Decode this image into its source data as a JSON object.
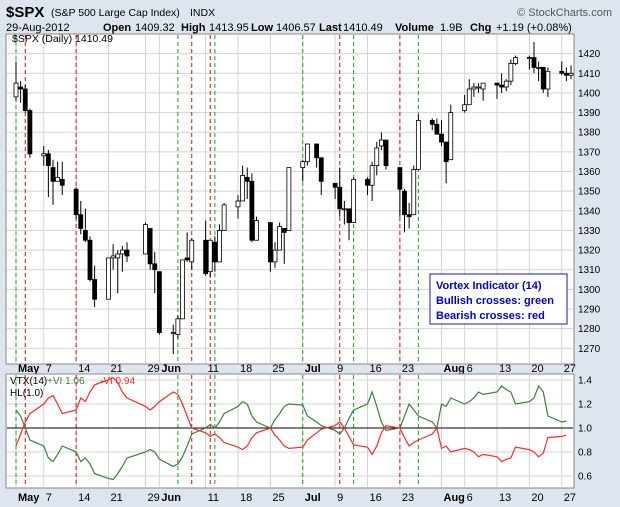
{
  "header": {
    "symbol": "$SPX",
    "name": "(S&P 500 Large Cap Index)",
    "exchange": "INDX",
    "brand": "© StockCharts.com",
    "date": "29-Aug-2012",
    "open_label": "Open",
    "open": "1409.32",
    "high_label": "High",
    "high": "1413.95",
    "low_label": "Low",
    "low": "1406.57",
    "last_label": "Last",
    "last": "1410.49",
    "volume_label": "Volume",
    "volume": "1.9B",
    "chg_label": "Chg",
    "chg": "+1.19 (+0.08%)",
    "chart_label": "$SPX (Daily) 1410.49"
  },
  "legend_box": {
    "line1": "Vortex Indicator (14)",
    "line2": "Bullish crosses: green",
    "line3": "Bearish crosses: red"
  },
  "lower_legend": {
    "vtx": "VTX(14)",
    "plus": "+VI 1.06",
    "minus": "-VI 0.94",
    "hl": "HL(1.0)"
  },
  "colors": {
    "background": "#dfe5ee",
    "panel": "#ffffff",
    "grid": "#d3d3d3",
    "up_candle": "#ffffff",
    "down_candle": "#000000",
    "plus_vi": "#3f7f3f",
    "minus_vi": "#ff2a2a",
    "bullish_cross": "#1f9f1f",
    "bearish_cross": "#cc1111",
    "legend_text": "#0000cc"
  },
  "chart_data": [
    {
      "type": "candlestick",
      "title": "$SPX (Daily)",
      "ylim": [
        1262,
        1430
      ],
      "y_ticks": [
        1270,
        1280,
        1290,
        1300,
        1310,
        1320,
        1330,
        1340,
        1350,
        1360,
        1370,
        1380,
        1390,
        1400,
        1410,
        1420
      ],
      "x_labels": [
        "May",
        "7",
        "14",
        "21",
        "29",
        "Jun",
        "11",
        "18",
        "25",
        "Jul",
        "9",
        "16",
        "23",
        "Aug",
        "6",
        "13",
        "20",
        "27"
      ],
      "grid": true,
      "bars": [
        [
          "2012-05-01",
          1398,
          1416,
          1396,
          1405
        ],
        [
          "2012-05-02",
          1403,
          1406,
          1395,
          1402
        ],
        [
          "2012-05-03",
          1402,
          1404,
          1390,
          1391
        ],
        [
          "2012-05-04",
          1391,
          1392,
          1367,
          1369
        ],
        [
          "2012-05-07",
          1368,
          1373,
          1363,
          1369
        ],
        [
          "2012-05-08",
          1369,
          1371,
          1347,
          1363
        ],
        [
          "2012-05-09",
          1362,
          1366,
          1343,
          1355
        ],
        [
          "2012-05-10",
          1355,
          1365,
          1355,
          1357
        ],
        [
          "2012-05-11",
          1356,
          1365,
          1348,
          1353
        ],
        [
          "2012-05-14",
          1351,
          1352,
          1336,
          1338
        ],
        [
          "2012-05-15",
          1338,
          1345,
          1328,
          1331
        ],
        [
          "2012-05-16",
          1330,
          1341,
          1324,
          1325
        ],
        [
          "2012-05-17",
          1325,
          1327,
          1304,
          1305
        ],
        [
          "2012-05-18",
          1305,
          1312,
          1291,
          1295
        ],
        [
          "2012-05-21",
          1295,
          1316,
          1295,
          1316
        ],
        [
          "2012-05-22",
          1316,
          1323,
          1310,
          1317
        ],
        [
          "2012-05-23",
          1316,
          1320,
          1298,
          1318
        ],
        [
          "2012-05-24",
          1318,
          1322,
          1309,
          1320
        ],
        [
          "2012-05-25",
          1320,
          1324,
          1314,
          1317
        ],
        [
          "2012-05-29",
          1318,
          1334,
          1318,
          1333
        ],
        [
          "2012-05-30",
          1331,
          1331,
          1310,
          1313
        ],
        [
          "2012-05-31",
          1313,
          1319,
          1298,
          1310
        ],
        [
          "2012-06-01",
          1309,
          1309,
          1277,
          1278
        ],
        [
          "2012-06-04",
          1278,
          1282,
          1267,
          1278
        ],
        [
          "2012-06-05",
          1277,
          1287,
          1275,
          1285
        ],
        [
          "2012-06-06",
          1285,
          1315,
          1285,
          1315
        ],
        [
          "2012-06-07",
          1316,
          1329,
          1314,
          1315
        ],
        [
          "2012-06-08",
          1314,
          1326,
          1310,
          1325
        ],
        [
          "2012-06-11",
          1325,
          1335,
          1307,
          1308
        ],
        [
          "2012-06-12",
          1309,
          1325,
          1306,
          1325
        ],
        [
          "2012-06-13",
          1324,
          1327,
          1309,
          1314
        ],
        [
          "2012-06-14",
          1314,
          1333,
          1314,
          1330
        ],
        [
          "2012-06-15",
          1330,
          1344,
          1330,
          1343
        ],
        [
          "2012-06-18",
          1342,
          1348,
          1336,
          1345
        ],
        [
          "2012-06-19",
          1345,
          1363,
          1345,
          1358
        ],
        [
          "2012-06-20",
          1357,
          1362,
          1346,
          1355
        ],
        [
          "2012-06-21",
          1355,
          1359,
          1324,
          1325
        ],
        [
          "2012-06-22",
          1325,
          1337,
          1325,
          1335
        ],
        [
          "2012-06-25",
          1334,
          1334,
          1309,
          1314
        ],
        [
          "2012-06-26",
          1314,
          1324,
          1311,
          1320
        ],
        [
          "2012-06-27",
          1320,
          1334,
          1320,
          1332
        ],
        [
          "2012-06-28",
          1331,
          1331,
          1313,
          1329
        ],
        [
          "2012-06-29",
          1330,
          1362,
          1330,
          1362
        ],
        [
          "2012-07-02",
          1362,
          1366,
          1355,
          1365
        ],
        [
          "2012-07-03",
          1365,
          1374,
          1363,
          1374
        ],
        [
          "2012-07-05",
          1374,
          1373,
          1362,
          1367
        ],
        [
          "2012-07-06",
          1367,
          1367,
          1348,
          1355
        ],
        [
          "2012-07-09",
          1354,
          1354,
          1346,
          1352
        ],
        [
          "2012-07-10",
          1352,
          1362,
          1337,
          1341
        ],
        [
          "2012-07-11",
          1341,
          1345,
          1333,
          1341
        ],
        [
          "2012-07-12",
          1341,
          1341,
          1325,
          1334
        ],
        [
          "2012-07-13",
          1334,
          1357,
          1334,
          1356
        ],
        [
          "2012-07-16",
          1356,
          1357,
          1348,
          1353
        ],
        [
          "2012-07-17",
          1353,
          1365,
          1345,
          1363
        ],
        [
          "2012-07-18",
          1363,
          1375,
          1358,
          1372
        ],
        [
          "2012-07-19",
          1373,
          1380,
          1371,
          1376
        ],
        [
          "2012-07-20",
          1376,
          1376,
          1361,
          1363
        ],
        [
          "2012-07-23",
          1362,
          1362,
          1337,
          1351
        ],
        [
          "2012-07-24",
          1350,
          1351,
          1329,
          1338
        ],
        [
          "2012-07-25",
          1338,
          1344,
          1331,
          1337
        ],
        [
          "2012-07-26",
          1338,
          1363,
          1338,
          1361
        ],
        [
          "2012-07-27",
          1361,
          1389,
          1361,
          1386
        ],
        [
          "2012-07-30",
          1386,
          1387,
          1381,
          1384
        ],
        [
          "2012-07-31",
          1384,
          1387,
          1379,
          1379
        ],
        [
          "2012-08-01",
          1379,
          1386,
          1373,
          1375
        ],
        [
          "2012-08-02",
          1375,
          1375,
          1354,
          1365
        ],
        [
          "2012-08-03",
          1366,
          1394,
          1366,
          1390
        ],
        [
          "2012-08-06",
          1391,
          1399,
          1390,
          1394
        ],
        [
          "2012-08-07",
          1394,
          1407,
          1394,
          1402
        ],
        [
          "2012-08-08",
          1402,
          1405,
          1398,
          1403
        ],
        [
          "2012-08-09",
          1403,
          1405,
          1400,
          1403
        ],
        [
          "2012-08-10",
          1402,
          1405,
          1396,
          1405
        ],
        [
          "2012-08-13",
          1405,
          1405,
          1397,
          1404
        ],
        [
          "2012-08-14",
          1404,
          1410,
          1400,
          1403
        ],
        [
          "2012-08-15",
          1403,
          1407,
          1401,
          1406
        ],
        [
          "2012-08-16",
          1406,
          1417,
          1404,
          1415
        ],
        [
          "2012-08-17",
          1415,
          1419,
          1414,
          1418
        ],
        [
          "2012-08-20",
          1418,
          1419,
          1412,
          1418
        ],
        [
          "2012-08-21",
          1418,
          1426,
          1410,
          1413
        ],
        [
          "2012-08-22",
          1413,
          1416,
          1406,
          1413
        ],
        [
          "2012-08-23",
          1413,
          1413,
          1400,
          1402
        ],
        [
          "2012-08-24",
          1402,
          1413,
          1398,
          1411
        ],
        [
          "2012-08-27",
          1411,
          1416,
          1409,
          1410
        ],
        [
          "2012-08-28",
          1410,
          1413,
          1406,
          1409
        ],
        [
          "2012-08-29",
          1409,
          1414,
          1407,
          1410
        ]
      ]
    },
    {
      "type": "line",
      "title": "VTX(14)",
      "ylim": [
        0.5,
        1.45
      ],
      "y_ticks": [
        0.6,
        0.8,
        1.0,
        1.2,
        1.4
      ],
      "x_labels": [
        "May",
        "7",
        "14",
        "21",
        "29",
        "Jun",
        "11",
        "18",
        "25",
        "Jul",
        "9",
        "16",
        "23",
        "Aug",
        "6",
        "13",
        "20",
        "27"
      ],
      "reference_line": 1.0,
      "series": [
        {
          "name": "+VI",
          "last": 1.06,
          "color": "#3f7f3f",
          "values": [
            1.15,
            1.1,
            1.0,
            0.9,
            0.85,
            0.75,
            0.72,
            0.78,
            0.85,
            0.8,
            0.72,
            0.75,
            0.7,
            0.62,
            0.58,
            0.57,
            0.62,
            0.68,
            0.75,
            0.8,
            0.82,
            0.8,
            0.74,
            0.68,
            0.7,
            0.76,
            0.85,
            0.95,
            1.0,
            1.03,
            1.0,
            1.05,
            1.12,
            1.18,
            1.22,
            1.2,
            1.1,
            1.05,
            1.0,
            1.07,
            1.12,
            1.18,
            1.2,
            1.19,
            1.1,
            1.05,
            1.02,
            0.98,
            0.95,
            1.0,
            1.08,
            1.15,
            1.2,
            1.3,
            1.18,
            1.05,
            0.98,
            1.0,
            1.1,
            1.2,
            1.15,
            1.1,
            1.05,
            1.0,
            1.2,
            1.18,
            1.25,
            1.2,
            1.22,
            1.25,
            1.3,
            1.28,
            1.3,
            1.35,
            1.32,
            1.3,
            1.2,
            1.22,
            1.25,
            1.35,
            1.3,
            1.1,
            1.05,
            1.06
          ]
        },
        {
          "name": "-VI",
          "last": 0.94,
          "color": "#ff2a2a",
          "values": [
            0.85,
            0.95,
            1.05,
            1.12,
            1.2,
            1.25,
            1.27,
            1.2,
            1.12,
            1.15,
            1.25,
            1.22,
            1.3,
            1.36,
            1.4,
            1.42,
            1.38,
            1.3,
            1.25,
            1.18,
            1.15,
            1.18,
            1.22,
            1.3,
            1.28,
            1.2,
            1.1,
            1.0,
            0.96,
            0.93,
            0.95,
            0.92,
            0.88,
            0.84,
            0.82,
            0.85,
            0.92,
            0.96,
            1.0,
            0.94,
            0.9,
            0.85,
            0.83,
            0.84,
            0.9,
            0.96,
            0.99,
            1.02,
            1.05,
            1.0,
            0.93,
            0.86,
            0.84,
            0.78,
            0.85,
            0.96,
            1.02,
            1.0,
            0.92,
            0.85,
            0.88,
            0.9,
            0.95,
            1.0,
            0.83,
            0.85,
            0.8,
            0.83,
            0.82,
            0.8,
            0.76,
            0.78,
            0.76,
            0.72,
            0.74,
            0.75,
            0.84,
            0.82,
            0.8,
            0.76,
            0.79,
            0.92,
            0.93,
            0.94
          ]
        }
      ]
    }
  ],
  "crosses": {
    "bearish": [
      "2012-05-03",
      "2012-05-14",
      "2012-06-08",
      "2012-06-12",
      "2012-07-10",
      "2012-07-23"
    ],
    "bullish": [
      "2012-05-01",
      "2012-06-05",
      "2012-06-13",
      "2012-07-02",
      "2012-07-13",
      "2012-07-27"
    ]
  }
}
